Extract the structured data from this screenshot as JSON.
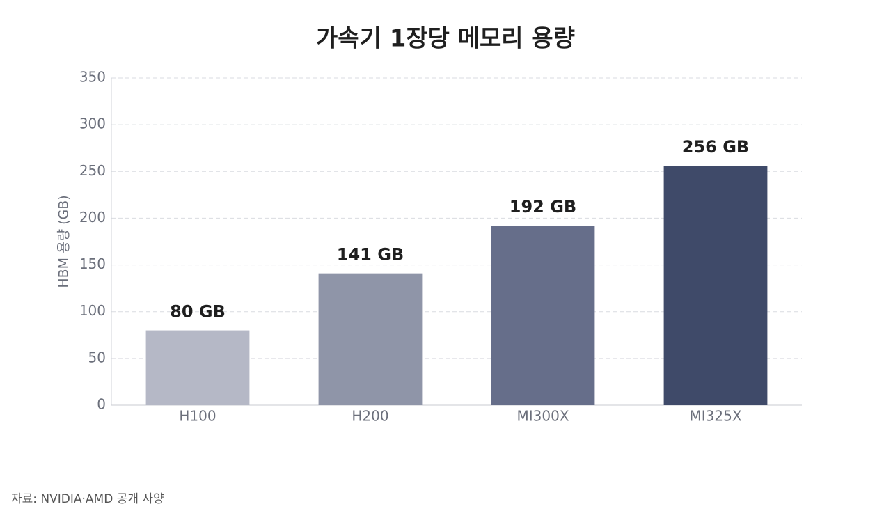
{
  "chart_data": {
    "type": "bar",
    "title": "가속기 1장당 메모리 용량",
    "y_label": "HBM 용량 (GB)",
    "categories": [
      "H100",
      "H200",
      "MI300X",
      "MI325X"
    ],
    "values": [
      80,
      141,
      192,
      256
    ],
    "value_labels": [
      "80 GB",
      "141 GB",
      "192 GB",
      "256 GB"
    ],
    "colors": [
      "#b5b8c6",
      "#8f95a8",
      "#666e8a",
      "#3f4a69"
    ],
    "ylim": [
      0,
      350
    ],
    "yticks": [
      0,
      50,
      100,
      150,
      200,
      250,
      300,
      350
    ],
    "grid": true,
    "source": "자료: NVIDIA·AMD 공개 사양"
  }
}
